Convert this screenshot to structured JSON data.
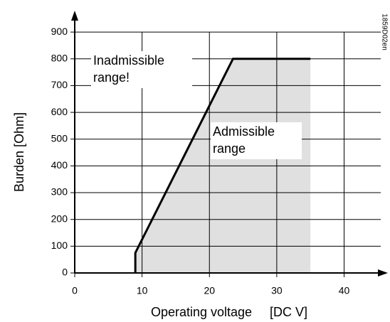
{
  "chart_data": {
    "type": "line",
    "x_label": "Operating voltage     [DC V]",
    "y_label": "Burden [Ohm]",
    "side_label": "1859D02en",
    "annotations": [
      {
        "lines": [
          "Inadmissible",
          "range!"
        ]
      },
      {
        "lines": [
          "Admissible",
          "range"
        ]
      }
    ],
    "series": [
      {
        "x": [
          9,
          9,
          23.5,
          35
        ],
        "values": [
          0,
          75,
          800,
          800
        ],
        "color": "#000000",
        "fill": "#e0e0e0"
      }
    ],
    "xlim": [
      0,
      46.5
    ],
    "ylim": [
      0,
      980
    ],
    "xticks": [
      0,
      10,
      20,
      30,
      40
    ],
    "yticks": [
      0,
      100,
      200,
      300,
      400,
      500,
      600,
      700,
      800,
      900
    ],
    "grid": true
  }
}
